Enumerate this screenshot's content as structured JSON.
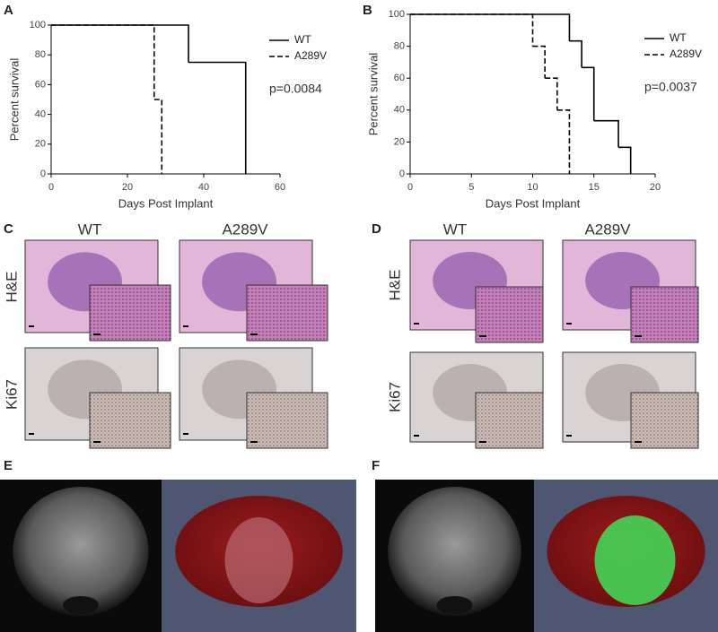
{
  "chart_data": [
    {
      "type": "line",
      "step": true,
      "panel": "A",
      "xlabel": "Days Post Implant",
      "ylabel": "Percent survival",
      "xlim": [
        0,
        60
      ],
      "xticks": [
        0,
        20,
        40,
        60
      ],
      "ylim": [
        0,
        100
      ],
      "yticks": [
        0,
        20,
        40,
        60,
        80,
        100
      ],
      "annotation": "p=0.0084",
      "series": [
        {
          "name": "WT",
          "color": "#000000",
          "dash": false,
          "x": [
            0,
            36,
            51
          ],
          "values": [
            100,
            75,
            0
          ]
        },
        {
          "name": "A289V",
          "color": "#000000",
          "dash": true,
          "x": [
            0,
            27,
            29
          ],
          "values": [
            100,
            50,
            0
          ]
        }
      ]
    },
    {
      "type": "line",
      "step": true,
      "panel": "B",
      "xlabel": "Days Post Implant",
      "ylabel": "Percent survival",
      "xlim": [
        0,
        20
      ],
      "xticks": [
        0,
        5,
        10,
        15,
        20
      ],
      "ylim": [
        0,
        100
      ],
      "yticks": [
        0,
        20,
        40,
        60,
        80,
        100
      ],
      "annotation": "p=0.0037",
      "series": [
        {
          "name": "WT",
          "color": "#000000",
          "dash": false,
          "x": [
            0,
            13,
            14,
            15,
            17,
            18
          ],
          "values": [
            100,
            83.3,
            66.7,
            33.3,
            16.7,
            0
          ]
        },
        {
          "name": "A289V",
          "color": "#000000",
          "dash": true,
          "x": [
            0,
            10,
            11,
            12,
            13
          ],
          "values": [
            100,
            80,
            60,
            40,
            0
          ]
        }
      ]
    }
  ],
  "panels": {
    "C": {
      "letter": "C",
      "columns": [
        "WT",
        "A289V"
      ],
      "rows": [
        "H&E",
        "Ki67"
      ]
    },
    "D": {
      "letter": "D",
      "columns": [
        "WT",
        "A289V"
      ],
      "rows": [
        "H&E",
        "Ki67"
      ]
    },
    "E": {
      "letter": "E"
    },
    "F": {
      "letter": "F"
    }
  }
}
